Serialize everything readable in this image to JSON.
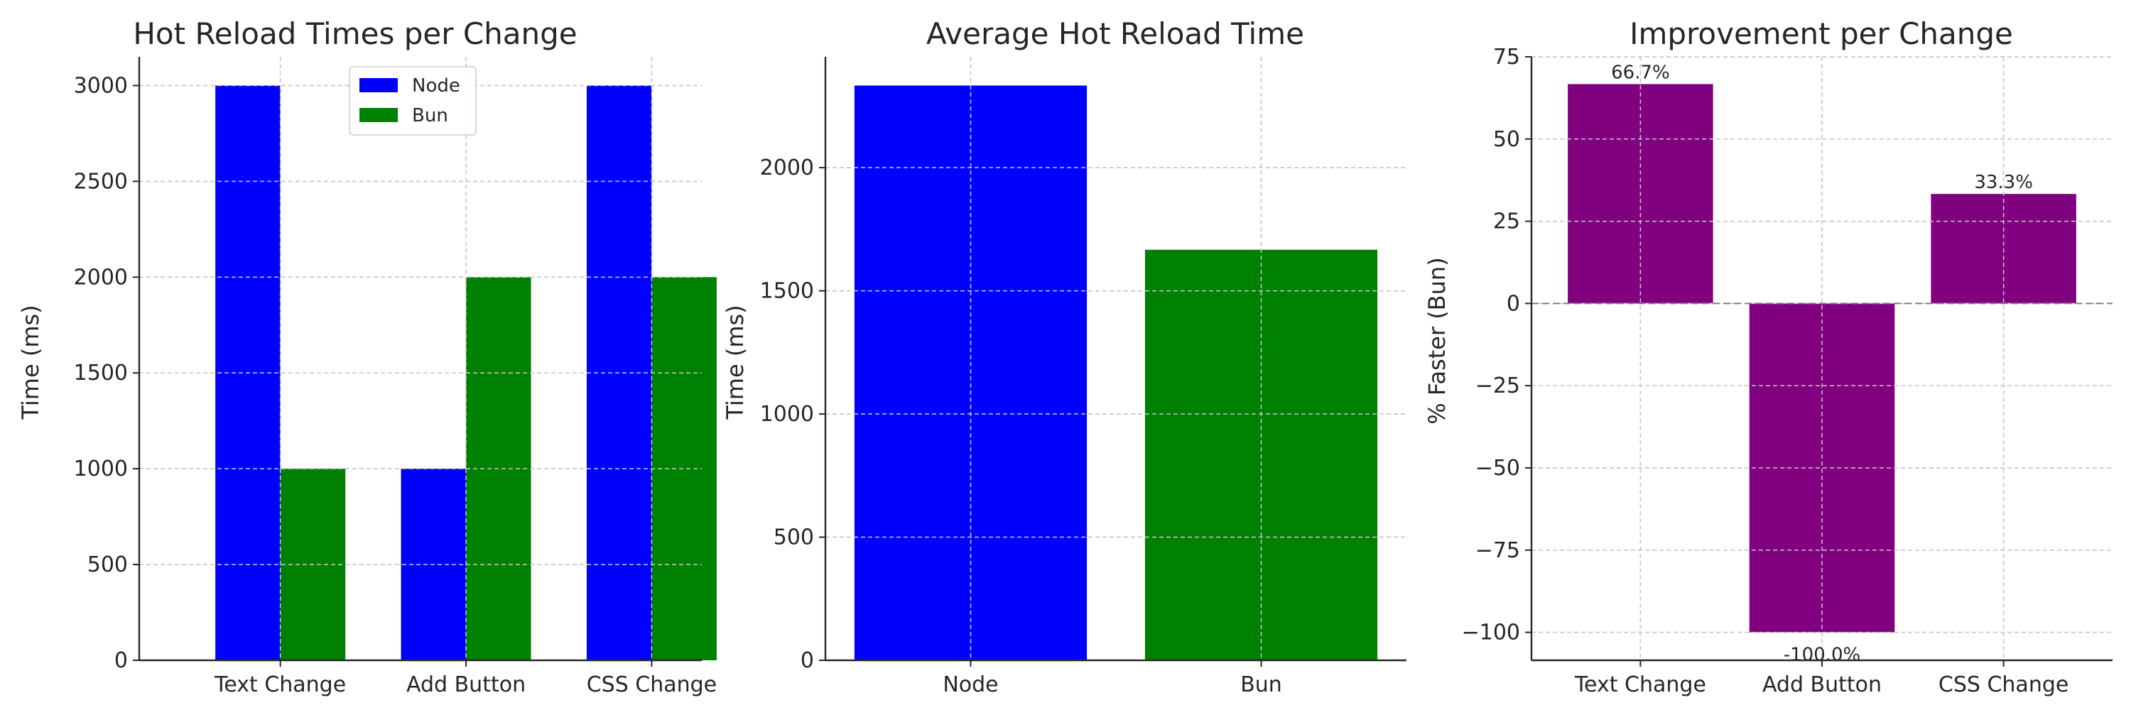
{
  "charts": [
    {
      "type": "bar",
      "title": "Hot Reload Times per Change",
      "xlabel": "",
      "ylabel": "Time (ms)",
      "categories": [
        "Text Change",
        "Add Button",
        "CSS Change"
      ],
      "series": [
        {
          "name": "Node",
          "color": "#0000ff",
          "values": [
            3000,
            1000,
            3000
          ]
        },
        {
          "name": "Bun",
          "color": "#008000",
          "values": [
            1000,
            2000,
            2000
          ]
        }
      ],
      "ylim": [
        0,
        3150
      ],
      "yticks": [
        0,
        500,
        1000,
        1500,
        2000,
        2500,
        3000
      ],
      "grid": true,
      "legend": "top-center"
    },
    {
      "type": "bar",
      "title": "Average Hot Reload Time",
      "xlabel": "",
      "ylabel": "Time (ms)",
      "categories": [
        "Node",
        "Bun"
      ],
      "values": [
        2333.33,
        1666.67
      ],
      "colors": [
        "#0000ff",
        "#008000"
      ],
      "ylim": [
        0,
        2450
      ],
      "yticks": [
        0,
        500,
        1000,
        1500,
        2000
      ],
      "grid": true
    },
    {
      "type": "bar",
      "title": "Improvement per Change",
      "xlabel": "",
      "ylabel": "% Faster (Bun)",
      "categories": [
        "Text Change",
        "Add Button",
        "CSS Change"
      ],
      "values": [
        66.7,
        -100.0,
        33.3
      ],
      "data_labels": [
        "66.7%",
        "-100.0%",
        "33.3%"
      ],
      "color": "#800080",
      "ylim": [
        -108.5,
        75
      ],
      "yticks": [
        -100,
        -75,
        -50,
        -25,
        0,
        25,
        50,
        75
      ],
      "ytick_labels": [
        "−100",
        "−75",
        "−50",
        "−25",
        "0",
        "25",
        "50",
        "75"
      ],
      "zero_line": true,
      "grid": true
    }
  ]
}
